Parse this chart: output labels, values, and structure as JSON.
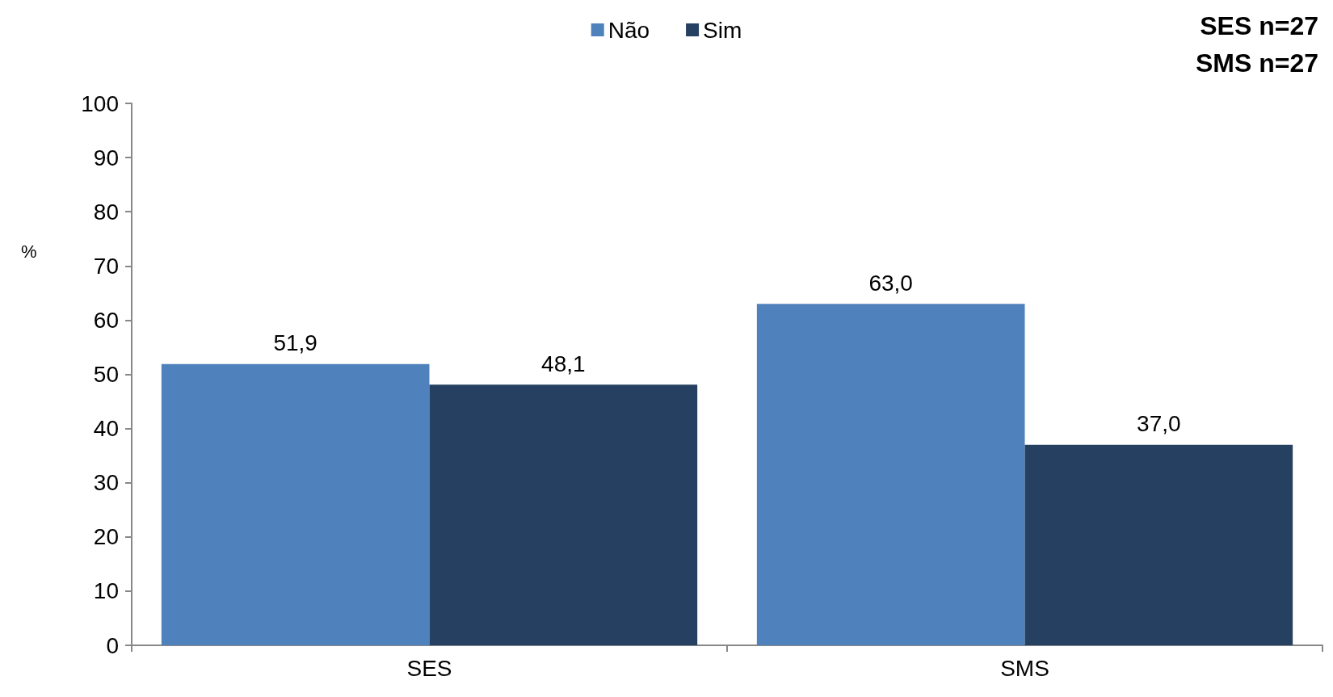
{
  "chart_data": {
    "type": "bar",
    "ylabel": "%",
    "categories": [
      "SES",
      "SMS"
    ],
    "series": [
      {
        "name": "Não",
        "color": "#4f81bd",
        "values": [
          51.9,
          63.0
        ],
        "value_labels": [
          "51,9",
          "63,0"
        ]
      },
      {
        "name": "Sim",
        "color": "#254061",
        "values": [
          48.1,
          37.0
        ],
        "value_labels": [
          "48,1",
          "37,0"
        ]
      }
    ],
    "ylim": [
      0,
      100
    ],
    "yticks": [
      0,
      10,
      20,
      30,
      40,
      50,
      60,
      70,
      80,
      90,
      100
    ],
    "grid": false,
    "legend": "top",
    "annotations": [
      "SES n=27",
      "SMS n=27"
    ]
  }
}
